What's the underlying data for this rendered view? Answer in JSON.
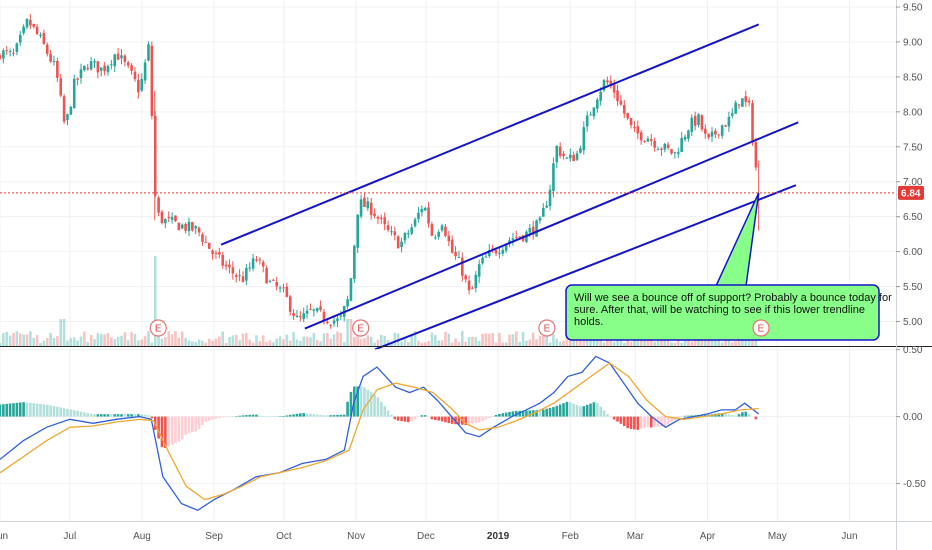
{
  "chart_data": [
    {
      "type": "candlestick",
      "panel": "price",
      "y_axis_position": "right",
      "ylim": [
        4.65,
        9.6
      ],
      "y_ticks": [
        5.0,
        5.5,
        6.0,
        6.5,
        7.0,
        7.5,
        8.0,
        8.5,
        9.0,
        9.5
      ],
      "y_tick_labels": [
        "5.00",
        "5.50",
        "6.00",
        "6.50",
        "7.00",
        "7.50",
        "8.00",
        "8.50",
        "9.00",
        "9.50"
      ],
      "x_ticks": [
        {
          "label": "Jun",
          "day": 0
        },
        {
          "label": "Jul",
          "day": 30
        },
        {
          "label": "Aug",
          "day": 61
        },
        {
          "label": "Sep",
          "day": 92
        },
        {
          "label": "Oct",
          "day": 122
        },
        {
          "label": "Nov",
          "day": 153
        },
        {
          "label": "Dec",
          "day": 183
        },
        {
          "label": "2019",
          "day": 214,
          "bold": true
        },
        {
          "label": "Feb",
          "day": 245
        },
        {
          "label": "Mar",
          "day": 273
        },
        {
          "label": "Apr",
          "day": 304
        },
        {
          "label": "May",
          "day": 334
        },
        {
          "label": "Jun",
          "day": 365
        }
      ],
      "xlim": [
        0,
        385
      ],
      "grid": true,
      "last_price": 6.84,
      "last_price_label": "6.84",
      "colors": {
        "up": "#26a69a",
        "down": "#ef5350",
        "channel": "#1515c8",
        "price_line": "#e53935",
        "annotation_fill": "#88ff88",
        "annotation_border": "#1515c8"
      },
      "price_path": [
        [
          0,
          8.85
        ],
        [
          6,
          8.8
        ],
        [
          12,
          9.3
        ],
        [
          18,
          9.0
        ],
        [
          24,
          8.6
        ],
        [
          28,
          7.75
        ],
        [
          32,
          8.4
        ],
        [
          38,
          8.7
        ],
        [
          44,
          8.6
        ],
        [
          50,
          8.85
        ],
        [
          56,
          8.55
        ],
        [
          60,
          8.3
        ],
        [
          64,
          8.95
        ],
        [
          67,
          6.55
        ],
        [
          70,
          6.45
        ],
        [
          75,
          6.4
        ],
        [
          80,
          6.35
        ],
        [
          85,
          6.3
        ],
        [
          92,
          5.95
        ],
        [
          98,
          5.75
        ],
        [
          104,
          5.6
        ],
        [
          110,
          5.9
        ],
        [
          116,
          5.55
        ],
        [
          122,
          5.4
        ],
        [
          128,
          5.0
        ],
        [
          134,
          5.15
        ],
        [
          140,
          5.05
        ],
        [
          146,
          5.0
        ],
        [
          150,
          5.35
        ],
        [
          154,
          6.7
        ],
        [
          160,
          6.6
        ],
        [
          166,
          6.3
        ],
        [
          172,
          6.1
        ],
        [
          178,
          6.4
        ],
        [
          182,
          6.7
        ],
        [
          186,
          6.2
        ],
        [
          190,
          6.45
        ],
        [
          194,
          6.0
        ],
        [
          198,
          5.8
        ],
        [
          202,
          5.35
        ],
        [
          206,
          5.8
        ],
        [
          210,
          5.95
        ],
        [
          214,
          6.05
        ],
        [
          220,
          6.2
        ],
        [
          226,
          6.25
        ],
        [
          232,
          6.4
        ],
        [
          236,
          6.85
        ],
        [
          239,
          7.5
        ],
        [
          244,
          7.3
        ],
        [
          248,
          7.4
        ],
        [
          252,
          7.85
        ],
        [
          256,
          8.2
        ],
        [
          260,
          8.45
        ],
        [
          264,
          8.3
        ],
        [
          268,
          8.0
        ],
        [
          272,
          7.7
        ],
        [
          278,
          7.65
        ],
        [
          284,
          7.5
        ],
        [
          290,
          7.4
        ],
        [
          296,
          7.8
        ],
        [
          300,
          7.9
        ],
        [
          304,
          7.55
        ],
        [
          310,
          7.8
        ],
        [
          314,
          7.9
        ],
        [
          318,
          8.2
        ],
        [
          322,
          8.05
        ],
        [
          326,
          6.84
        ]
      ],
      "channel_lines": [
        {
          "name": "upper channel",
          "from": [
            95,
            6.1
          ],
          "to": [
            326,
            9.25
          ]
        },
        {
          "name": "middle channel",
          "from": [
            131,
            4.9
          ],
          "to": [
            343,
            7.85
          ]
        },
        {
          "name": "lower trendline",
          "from": [
            161,
            4.6
          ],
          "to": [
            342,
            6.95
          ]
        }
      ],
      "earnings_markers": [
        {
          "day": 68,
          "label": "E"
        },
        {
          "day": 155,
          "label": "E"
        },
        {
          "day": 235,
          "label": "E"
        },
        {
          "day": 327,
          "label": "E"
        }
      ],
      "annotation": {
        "text": "Will we see a bounce off of support?  Probably a bounce today for sure.  After that, will be watching to see if this lower trendline holds.",
        "anchor": [
          326,
          6.84
        ]
      },
      "volume_spikes": [
        {
          "day": 67,
          "level": 1.0
        },
        {
          "day": 27,
          "level": 0.3
        },
        {
          "day": 150,
          "level": 0.3
        }
      ]
    },
    {
      "type": "macd",
      "panel": "indicator",
      "y_axis_position": "right",
      "ylim": [
        -0.78,
        0.52
      ],
      "y_ticks": [
        0.5,
        0.0,
        -0.5
      ],
      "y_tick_labels": [
        "0.50",
        "0.00",
        "-0.50"
      ],
      "series": [
        {
          "name": "",
          "color": "#3060d8",
          "points": [
            [
              0,
              -0.32
            ],
            [
              10,
              -0.18
            ],
            [
              20,
              -0.08
            ],
            [
              30,
              -0.02
            ],
            [
              40,
              -0.05
            ],
            [
              50,
              -0.02
            ],
            [
              60,
              0.0
            ],
            [
              65,
              -0.02
            ],
            [
              70,
              -0.45
            ],
            [
              78,
              -0.65
            ],
            [
              85,
              -0.7
            ],
            [
              92,
              -0.62
            ],
            [
              100,
              -0.55
            ],
            [
              110,
              -0.45
            ],
            [
              120,
              -0.42
            ],
            [
              130,
              -0.35
            ],
            [
              140,
              -0.32
            ],
            [
              148,
              -0.25
            ],
            [
              152,
              0.1
            ],
            [
              156,
              0.3
            ],
            [
              162,
              0.37
            ],
            [
              170,
              0.22
            ],
            [
              176,
              0.18
            ],
            [
              182,
              0.22
            ],
            [
              188,
              0.12
            ],
            [
              194,
              0.0
            ],
            [
              200,
              -0.12
            ],
            [
              206,
              -0.15
            ],
            [
              212,
              -0.08
            ],
            [
              220,
              0.0
            ],
            [
              226,
              0.05
            ],
            [
              232,
              0.1
            ],
            [
              238,
              0.18
            ],
            [
              244,
              0.3
            ],
            [
              250,
              0.33
            ],
            [
              256,
              0.45
            ],
            [
              262,
              0.4
            ],
            [
              268,
              0.25
            ],
            [
              274,
              0.1
            ],
            [
              280,
              0.0
            ],
            [
              286,
              -0.08
            ],
            [
              292,
              -0.02
            ],
            [
              298,
              0.0
            ],
            [
              304,
              0.02
            ],
            [
              310,
              0.05
            ],
            [
              316,
              0.05
            ],
            [
              320,
              0.1
            ],
            [
              326,
              0.02
            ]
          ]
        },
        {
          "name": "",
          "color": "#f0a830",
          "points": [
            [
              0,
              -0.42
            ],
            [
              10,
              -0.3
            ],
            [
              20,
              -0.18
            ],
            [
              30,
              -0.08
            ],
            [
              40,
              -0.07
            ],
            [
              50,
              -0.04
            ],
            [
              60,
              -0.02
            ],
            [
              66,
              -0.03
            ],
            [
              72,
              -0.25
            ],
            [
              80,
              -0.52
            ],
            [
              88,
              -0.62
            ],
            [
              96,
              -0.58
            ],
            [
              104,
              -0.52
            ],
            [
              112,
              -0.45
            ],
            [
              120,
              -0.42
            ],
            [
              130,
              -0.38
            ],
            [
              140,
              -0.33
            ],
            [
              150,
              -0.25
            ],
            [
              156,
              0.05
            ],
            [
              162,
              0.2
            ],
            [
              170,
              0.25
            ],
            [
              178,
              0.22
            ],
            [
              186,
              0.18
            ],
            [
              194,
              0.06
            ],
            [
              200,
              -0.05
            ],
            [
              206,
              -0.1
            ],
            [
              214,
              -0.08
            ],
            [
              222,
              -0.03
            ],
            [
              230,
              0.03
            ],
            [
              238,
              0.1
            ],
            [
              246,
              0.2
            ],
            [
              254,
              0.3
            ],
            [
              262,
              0.4
            ],
            [
              270,
              0.3
            ],
            [
              278,
              0.12
            ],
            [
              286,
              0.0
            ],
            [
              294,
              -0.02
            ],
            [
              302,
              0.0
            ],
            [
              310,
              0.02
            ],
            [
              318,
              0.05
            ],
            [
              326,
              0.06
            ]
          ]
        }
      ],
      "histogram_colors": {
        "pos_strong": "#26a69a",
        "pos_weak": "#b2dfdb",
        "neg_strong": "#ef5350",
        "neg_weak": "#ffcdd2"
      }
    }
  ]
}
